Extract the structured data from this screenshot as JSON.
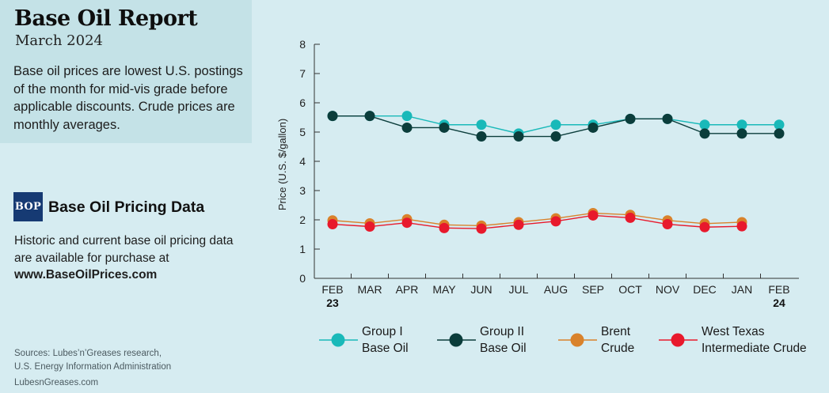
{
  "header": {
    "title": "Base Oil Report",
    "subtitle": "March 2024",
    "description": "Base oil prices are lowest U.S. postings of the month for mid-vis grade before applicable discounts. Crude prices are monthly averages."
  },
  "promo": {
    "logo_text": "BOP",
    "title": "Base Oil Pricing Data",
    "text": "Historic and current base oil pricing data are available for purchase at",
    "url": "www.BaseOilPrices.com"
  },
  "footer": {
    "sources_line1": "Sources: Lubes’n’Greases research,",
    "sources_line2": "U.S. Energy Information Administration",
    "site": "LubesnGreases.com"
  },
  "legend": [
    {
      "line1": "Group I",
      "line2": "Base Oil"
    },
    {
      "line1": "Group II",
      "line2": "Base Oil"
    },
    {
      "line1": "Brent",
      "line2": "Crude"
    },
    {
      "line1": "West Texas",
      "line2": "Intermediate Crude"
    }
  ],
  "chart_data": {
    "type": "line",
    "categories": [
      "FEB",
      "MAR",
      "APR",
      "MAY",
      "JUN",
      "JUL",
      "AUG",
      "SEP",
      "OCT",
      "NOV",
      "DEC",
      "JAN",
      "FEB"
    ],
    "year_labels": [
      "23",
      "",
      "",
      "",
      "",
      "",
      "",
      "",
      "",
      "",
      "",
      "",
      "24"
    ],
    "ylabel": "Price (U.S. $/gallon)",
    "ylim": [
      0,
      8
    ],
    "yticks": [
      0,
      1,
      2,
      3,
      4,
      5,
      6,
      7,
      8
    ],
    "grid": false,
    "series": [
      {
        "name": "Group I Base Oil",
        "color": "#19b9b9",
        "line_color": "#19b9b9",
        "values": [
          5.55,
          5.55,
          5.55,
          5.25,
          5.25,
          4.95,
          5.25,
          5.25,
          5.45,
          5.45,
          5.25,
          5.25,
          5.25
        ]
      },
      {
        "name": "Group II Base Oil",
        "color": "#0b3d3b",
        "line_color": "#0b3d3b",
        "values": [
          5.55,
          5.55,
          5.15,
          5.15,
          4.85,
          4.85,
          4.85,
          5.15,
          5.45,
          5.45,
          4.95,
          4.95,
          4.95
        ]
      },
      {
        "name": "Brent Crude",
        "color": "#d9822b",
        "line_color": "#d9822b",
        "values": [
          1.98,
          1.88,
          2.02,
          1.83,
          1.8,
          1.92,
          2.05,
          2.23,
          2.17,
          1.98,
          1.87,
          1.92,
          null
        ]
      },
      {
        "name": "West Texas Intermediate Crude",
        "color": "#e8192c",
        "line_color": "#e8192c",
        "values": [
          1.85,
          1.77,
          1.9,
          1.72,
          1.7,
          1.83,
          1.95,
          2.15,
          2.07,
          1.85,
          1.75,
          1.78,
          null
        ]
      }
    ]
  }
}
